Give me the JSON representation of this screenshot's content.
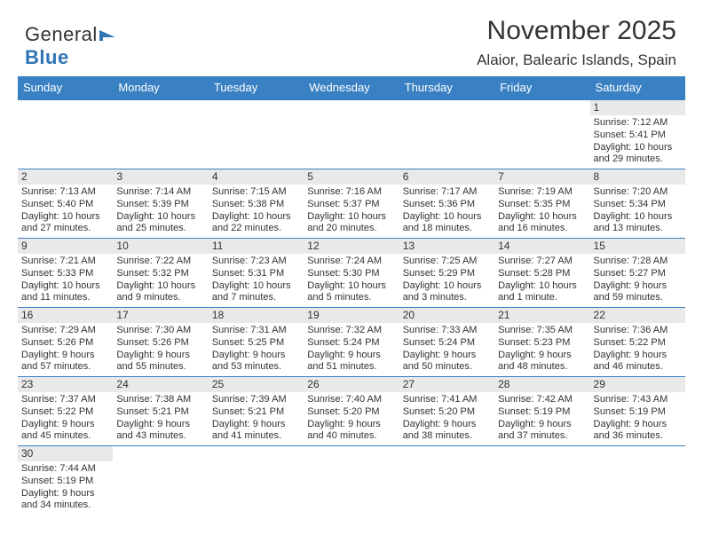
{
  "logo": {
    "part1": "General",
    "part2": "Blue"
  },
  "title": "November 2025",
  "subtitle": "Alaior, Balearic Islands, Spain",
  "colors": {
    "header_bg": "#3a81c3",
    "header_text": "#ffffff",
    "border": "#3a81c3",
    "daylabel_bg": "#e9e9e9",
    "body_text": "#333333",
    "logo_blue": "#2f74b5",
    "background": "#ffffff"
  },
  "fonts": {
    "title_size": 30,
    "subtitle_size": 17,
    "header_size": 13,
    "daynum_size": 12,
    "cell_size": 11
  },
  "weekdays": [
    "Sunday",
    "Monday",
    "Tuesday",
    "Wednesday",
    "Thursday",
    "Friday",
    "Saturday"
  ],
  "cells": [
    [
      null,
      null,
      null,
      null,
      null,
      null,
      {
        "n": "1",
        "sunrise": "7:12 AM",
        "sunset": "5:41 PM",
        "daylight": "10 hours and 29 minutes."
      }
    ],
    [
      {
        "n": "2",
        "sunrise": "7:13 AM",
        "sunset": "5:40 PM",
        "daylight": "10 hours and 27 minutes."
      },
      {
        "n": "3",
        "sunrise": "7:14 AM",
        "sunset": "5:39 PM",
        "daylight": "10 hours and 25 minutes."
      },
      {
        "n": "4",
        "sunrise": "7:15 AM",
        "sunset": "5:38 PM",
        "daylight": "10 hours and 22 minutes."
      },
      {
        "n": "5",
        "sunrise": "7:16 AM",
        "sunset": "5:37 PM",
        "daylight": "10 hours and 20 minutes."
      },
      {
        "n": "6",
        "sunrise": "7:17 AM",
        "sunset": "5:36 PM",
        "daylight": "10 hours and 18 minutes."
      },
      {
        "n": "7",
        "sunrise": "7:19 AM",
        "sunset": "5:35 PM",
        "daylight": "10 hours and 16 minutes."
      },
      {
        "n": "8",
        "sunrise": "7:20 AM",
        "sunset": "5:34 PM",
        "daylight": "10 hours and 13 minutes."
      }
    ],
    [
      {
        "n": "9",
        "sunrise": "7:21 AM",
        "sunset": "5:33 PM",
        "daylight": "10 hours and 11 minutes."
      },
      {
        "n": "10",
        "sunrise": "7:22 AM",
        "sunset": "5:32 PM",
        "daylight": "10 hours and 9 minutes."
      },
      {
        "n": "11",
        "sunrise": "7:23 AM",
        "sunset": "5:31 PM",
        "daylight": "10 hours and 7 minutes."
      },
      {
        "n": "12",
        "sunrise": "7:24 AM",
        "sunset": "5:30 PM",
        "daylight": "10 hours and 5 minutes."
      },
      {
        "n": "13",
        "sunrise": "7:25 AM",
        "sunset": "5:29 PM",
        "daylight": "10 hours and 3 minutes."
      },
      {
        "n": "14",
        "sunrise": "7:27 AM",
        "sunset": "5:28 PM",
        "daylight": "10 hours and 1 minute."
      },
      {
        "n": "15",
        "sunrise": "7:28 AM",
        "sunset": "5:27 PM",
        "daylight": "9 hours and 59 minutes."
      }
    ],
    [
      {
        "n": "16",
        "sunrise": "7:29 AM",
        "sunset": "5:26 PM",
        "daylight": "9 hours and 57 minutes."
      },
      {
        "n": "17",
        "sunrise": "7:30 AM",
        "sunset": "5:26 PM",
        "daylight": "9 hours and 55 minutes."
      },
      {
        "n": "18",
        "sunrise": "7:31 AM",
        "sunset": "5:25 PM",
        "daylight": "9 hours and 53 minutes."
      },
      {
        "n": "19",
        "sunrise": "7:32 AM",
        "sunset": "5:24 PM",
        "daylight": "9 hours and 51 minutes."
      },
      {
        "n": "20",
        "sunrise": "7:33 AM",
        "sunset": "5:24 PM",
        "daylight": "9 hours and 50 minutes."
      },
      {
        "n": "21",
        "sunrise": "7:35 AM",
        "sunset": "5:23 PM",
        "daylight": "9 hours and 48 minutes."
      },
      {
        "n": "22",
        "sunrise": "7:36 AM",
        "sunset": "5:22 PM",
        "daylight": "9 hours and 46 minutes."
      }
    ],
    [
      {
        "n": "23",
        "sunrise": "7:37 AM",
        "sunset": "5:22 PM",
        "daylight": "9 hours and 45 minutes."
      },
      {
        "n": "24",
        "sunrise": "7:38 AM",
        "sunset": "5:21 PM",
        "daylight": "9 hours and 43 minutes."
      },
      {
        "n": "25",
        "sunrise": "7:39 AM",
        "sunset": "5:21 PM",
        "daylight": "9 hours and 41 minutes."
      },
      {
        "n": "26",
        "sunrise": "7:40 AM",
        "sunset": "5:20 PM",
        "daylight": "9 hours and 40 minutes."
      },
      {
        "n": "27",
        "sunrise": "7:41 AM",
        "sunset": "5:20 PM",
        "daylight": "9 hours and 38 minutes."
      },
      {
        "n": "28",
        "sunrise": "7:42 AM",
        "sunset": "5:19 PM",
        "daylight": "9 hours and 37 minutes."
      },
      {
        "n": "29",
        "sunrise": "7:43 AM",
        "sunset": "5:19 PM",
        "daylight": "9 hours and 36 minutes."
      }
    ],
    [
      {
        "n": "30",
        "sunrise": "7:44 AM",
        "sunset": "5:19 PM",
        "daylight": "9 hours and 34 minutes."
      },
      null,
      null,
      null,
      null,
      null,
      null
    ]
  ],
  "labels": {
    "sunrise": "Sunrise: ",
    "sunset": "Sunset: ",
    "daylight": "Daylight: "
  }
}
